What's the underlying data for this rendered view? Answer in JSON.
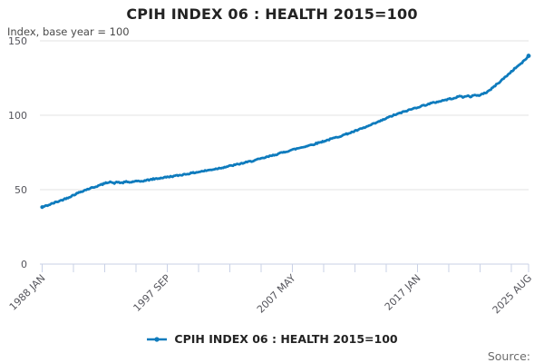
{
  "header": {
    "title": "CPIH INDEX 06 : HEALTH 2015=100",
    "subtitle": "Index, base year = 100"
  },
  "legend": {
    "label": "CPIH INDEX 06 : HEALTH 2015=100"
  },
  "footer": {
    "source_label": "Source:"
  },
  "colors": {
    "line": "#0e7bbd",
    "grid": "#e3e3e3",
    "axis": "#c9d1e6",
    "tick_text": "#55555c",
    "title_text": "#232323",
    "source_text": "#6b6b6b"
  },
  "chart_data": {
    "type": "line",
    "title": "CPIH INDEX 06 : HEALTH 2015=100",
    "ylabel": "Index, base year = 100",
    "xlabel": "",
    "ylim": [
      0,
      150
    ],
    "yticks": [
      0,
      50,
      100,
      150
    ],
    "x_range_months": [
      0,
      451
    ],
    "x_start_label": "1988 JAN",
    "x_end_label": "2025 AUG",
    "xticks_minor_months": [
      0,
      29,
      58,
      87,
      116,
      145,
      174,
      203,
      232,
      261,
      290,
      319,
      348,
      377,
      406,
      435,
      451
    ],
    "xtick_labels": [
      {
        "month": 0,
        "label": "1988 JAN"
      },
      {
        "month": 116,
        "label": "1997 SEP"
      },
      {
        "month": 232,
        "label": "2007 MAY"
      },
      {
        "month": 348,
        "label": "2017 JAN"
      },
      {
        "month": 451,
        "label": "2025 AUG"
      }
    ],
    "grid": true,
    "legend_position": "bottom-center",
    "series": [
      {
        "name": "CPIH INDEX 06 : HEALTH 2015=100",
        "color": "#0e7bbd",
        "points": [
          [
            0,
            38.3
          ],
          [
            6,
            39.7
          ],
          [
            12,
            41.4
          ],
          [
            18,
            42.9
          ],
          [
            24,
            44.7
          ],
          [
            30,
            46.7
          ],
          [
            36,
            48.7
          ],
          [
            42,
            50.3
          ],
          [
            48,
            51.7
          ],
          [
            54,
            53.1
          ],
          [
            60,
            54.7
          ],
          [
            63,
            55.5
          ],
          [
            66,
            54.2
          ],
          [
            70,
            55.1
          ],
          [
            74,
            54.5
          ],
          [
            78,
            55.3
          ],
          [
            82,
            54.9
          ],
          [
            86,
            55.7
          ],
          [
            90,
            55.4
          ],
          [
            96,
            56.2
          ],
          [
            102,
            57.0
          ],
          [
            108,
            57.6
          ],
          [
            116,
            58.5
          ],
          [
            124,
            59.3
          ],
          [
            132,
            60.3
          ],
          [
            144,
            61.8
          ],
          [
            156,
            63.3
          ],
          [
            168,
            65.0
          ],
          [
            180,
            66.8
          ],
          [
            192,
            68.8
          ],
          [
            204,
            71.0
          ],
          [
            216,
            73.5
          ],
          [
            228,
            76.0
          ],
          [
            232,
            76.8
          ],
          [
            240,
            78.3
          ],
          [
            252,
            80.6
          ],
          [
            264,
            83.2
          ],
          [
            276,
            85.9
          ],
          [
            288,
            88.8
          ],
          [
            300,
            92.0
          ],
          [
            312,
            95.6
          ],
          [
            324,
            99.5
          ],
          [
            336,
            102.5
          ],
          [
            348,
            105.4
          ],
          [
            360,
            107.9
          ],
          [
            372,
            110.0
          ],
          [
            378,
            111.0
          ],
          [
            384,
            112.0
          ],
          [
            388,
            112.9
          ],
          [
            391,
            112.0
          ],
          [
            394,
            113.2
          ],
          [
            397,
            112.5
          ],
          [
            400,
            113.4
          ],
          [
            404,
            113.1
          ],
          [
            408,
            114.3
          ],
          [
            412,
            115.4
          ],
          [
            416,
            117.4
          ],
          [
            420,
            119.9
          ],
          [
            424,
            122.3
          ],
          [
            428,
            124.8
          ],
          [
            432,
            127.3
          ],
          [
            436,
            130.0
          ],
          [
            440,
            132.5
          ],
          [
            444,
            134.7
          ],
          [
            447,
            136.7
          ],
          [
            449,
            138.3
          ],
          [
            451,
            139.9
          ]
        ]
      }
    ]
  }
}
